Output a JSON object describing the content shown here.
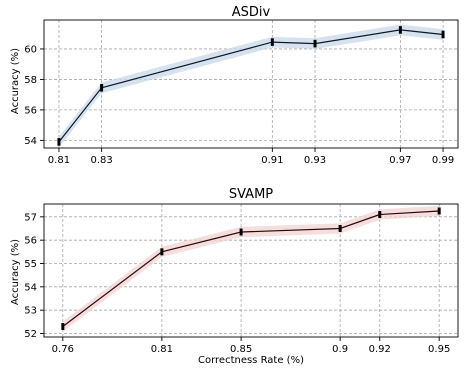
{
  "chart_data": [
    {
      "type": "line",
      "title": "ASDiv",
      "xlabel": "",
      "ylabel": "Accuracy (%)",
      "x": [
        0.81,
        0.83,
        0.91,
        0.93,
        0.97,
        0.99
      ],
      "x_tick_labels": [
        "0.81",
        "0.83",
        "0.91",
        "0.93",
        "0.97",
        "0.99"
      ],
      "y_ticks": [
        54,
        56,
        58,
        60
      ],
      "y_tick_labels": [
        "54",
        "56",
        "58",
        "60"
      ],
      "xlim": [
        0.803,
        0.997
      ],
      "ylim": [
        53.5,
        61.9
      ],
      "series": [
        {
          "values": [
            53.9,
            57.45,
            60.45,
            60.35,
            61.25,
            60.95
          ],
          "error": [
            0.25,
            0.25,
            0.25,
            0.25,
            0.25,
            0.25
          ],
          "band": 0.35,
          "color": "#0b1a2a",
          "band_color": "#c9d8ea"
        }
      ],
      "grid": true
    },
    {
      "type": "line",
      "title": "SVAMP",
      "xlabel": "Correctness Rate (%)",
      "ylabel": "Accuracy (%)",
      "x": [
        0.76,
        0.81,
        0.85,
        0.9,
        0.92,
        0.95
      ],
      "x_tick_labels": [
        "0.76",
        "0.81",
        "0.85",
        "0.9",
        "0.92",
        "0.95"
      ],
      "y_ticks": [
        52,
        53,
        54,
        55,
        56,
        57
      ],
      "y_tick_labels": [
        "52",
        "53",
        "54",
        "55",
        "56",
        "57"
      ],
      "xlim": [
        0.7505,
        0.9595
      ],
      "ylim": [
        51.85,
        57.55
      ],
      "series": [
        {
          "values": [
            52.3,
            55.5,
            56.35,
            56.5,
            57.1,
            57.25
          ],
          "error": [
            0.15,
            0.15,
            0.15,
            0.15,
            0.15,
            0.15
          ],
          "band": 0.22,
          "color": "#2a0b0b",
          "band_color": "#f2d3d3"
        }
      ],
      "grid": true
    }
  ]
}
